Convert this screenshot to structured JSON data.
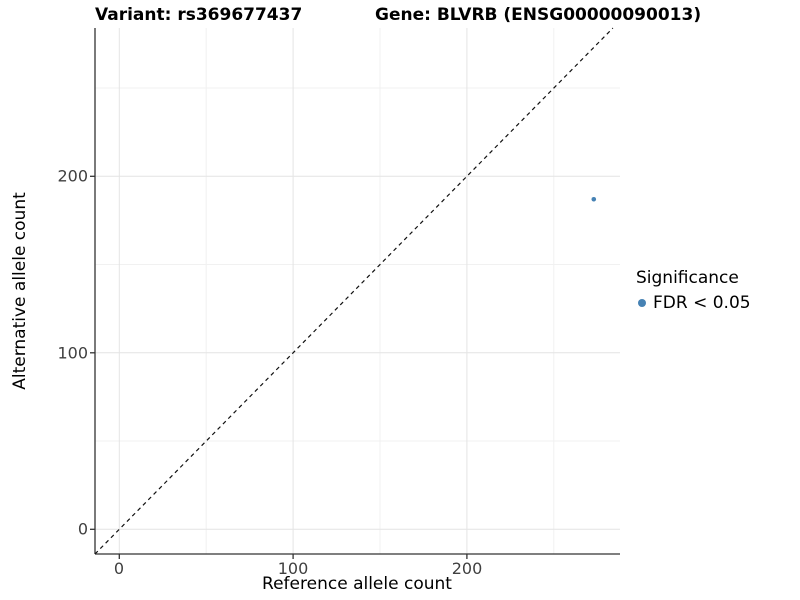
{
  "page": {
    "background": "#ffffff"
  },
  "chart_data": {
    "type": "scatter",
    "title_left": "Variant: rs369677437",
    "title_right": "Gene: BLVRB (ENSG00000090013)",
    "xlabel": "Reference allele count",
    "ylabel": "Alternative allele count",
    "xlim": [
      -14,
      288
    ],
    "ylim": [
      -14,
      284
    ],
    "x_ticks": [
      0,
      100,
      200
    ],
    "y_ticks": [
      0,
      100,
      200
    ],
    "grid": {
      "x_major": [
        0,
        100,
        200
      ],
      "x_minor": [
        50,
        150,
        250
      ],
      "y_major": [
        0,
        100,
        200
      ],
      "y_minor": [
        50,
        150,
        250
      ]
    },
    "series": [
      {
        "name": "FDR < 0.05",
        "color": "#4682b4",
        "points": [
          {
            "x": 273,
            "y": 187
          }
        ]
      }
    ],
    "reference_line": {
      "kind": "identity y = x",
      "style": "dashed",
      "color": "#111111",
      "from": {
        "x": -14,
        "y": -14
      },
      "to": {
        "x": 284,
        "y": 284
      }
    },
    "legend": {
      "title": "Significance",
      "position": "right",
      "entries": [
        {
          "label": "FDR < 0.05",
          "color": "#4682b4",
          "marker": "circle"
        }
      ]
    },
    "style_colors": {
      "grid_major": "#e4e4e4",
      "grid_minor": "#f1f1f1",
      "axis_line": "#333333",
      "tick_text": "#404040",
      "point_fill": "#4682b4"
    }
  }
}
